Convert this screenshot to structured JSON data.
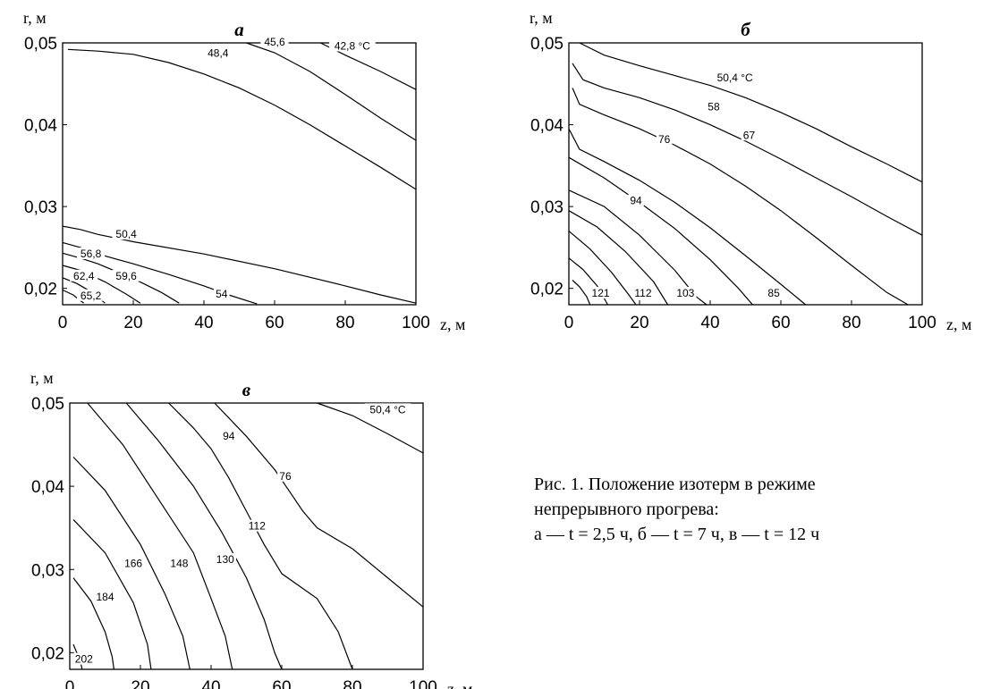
{
  "chart_data": [
    {
      "type": "line",
      "panel": "a",
      "title": "а",
      "xlabel": "z, м",
      "ylabel": "r, м",
      "xlim": [
        0,
        100
      ],
      "ylim": [
        0.018,
        0.05
      ],
      "xticks": [
        "0",
        "20",
        "40",
        "60",
        "80",
        "100"
      ],
      "yticks": [
        "0,02",
        "0,03",
        "0,04",
        "0,05"
      ],
      "series": [
        {
          "name": "42,8 °C",
          "points": [
            [
              73,
              0.05
            ],
            [
              80,
              0.0485
            ],
            [
              90,
              0.0465
            ],
            [
              100,
              0.0443
            ]
          ]
        },
        {
          "name": "45,6",
          "points": [
            [
              52,
              0.05
            ],
            [
              60,
              0.0488
            ],
            [
              70,
              0.0465
            ],
            [
              80,
              0.0437
            ],
            [
              90,
              0.0408
            ],
            [
              100,
              0.0381
            ]
          ]
        },
        {
          "name": "48,4",
          "points": [
            [
              1.5,
              0.0492
            ],
            [
              10,
              0.049
            ],
            [
              20,
              0.0486
            ],
            [
              30,
              0.0476
            ],
            [
              40,
              0.0462
            ],
            [
              50,
              0.0445
            ],
            [
              60,
              0.0424
            ],
            [
              70,
              0.04
            ],
            [
              80,
              0.0374
            ],
            [
              90,
              0.0348
            ],
            [
              100,
              0.0321
            ]
          ]
        },
        {
          "name": "50,4",
          "points": [
            [
              0,
              0.0276
            ],
            [
              5,
              0.0272
            ],
            [
              10,
              0.0266
            ],
            [
              20,
              0.0257
            ],
            [
              40,
              0.0242
            ],
            [
              60,
              0.0224
            ],
            [
              80,
              0.0203
            ],
            [
              90,
              0.0192
            ],
            [
              100,
              0.0182
            ]
          ]
        },
        {
          "name": "54",
          "points": [
            [
              0,
              0.0256
            ],
            [
              5,
              0.025
            ],
            [
              10,
              0.0242
            ],
            [
              20,
              0.023
            ],
            [
              30,
              0.0217
            ],
            [
              40,
              0.0203
            ],
            [
              47,
              0.0192
            ],
            [
              55,
              0.0181
            ]
          ]
        },
        {
          "name": "56,8",
          "points": [
            [
              0,
              0.0243
            ],
            [
              5,
              0.0237
            ],
            [
              10,
              0.023
            ],
            [
              20,
              0.0212
            ],
            [
              28,
              0.0195
            ],
            [
              33,
              0.0182
            ]
          ]
        },
        {
          "name": "59,6",
          "points": [
            [
              0,
              0.0228
            ],
            [
              5,
              0.0222
            ],
            [
              12,
              0.0208
            ],
            [
              18,
              0.0193
            ],
            [
              22,
              0.0182
            ]
          ]
        },
        {
          "name": "62,4",
          "points": [
            [
              0,
              0.0213
            ],
            [
              4,
              0.0206
            ],
            [
              8,
              0.0196
            ],
            [
              12,
              0.0182
            ]
          ]
        },
        {
          "name": "65,2",
          "points": [
            [
              0,
              0.0198
            ],
            [
              3,
              0.0192
            ],
            [
              5,
              0.0185
            ],
            [
              6,
              0.0182
            ]
          ]
        }
      ],
      "labels": [
        "42,8 °C",
        "45,6",
        "48,4",
        "50,4",
        "56,8",
        "62,4",
        "59,6",
        "65,2",
        "54"
      ]
    },
    {
      "type": "line",
      "panel": "б",
      "title": "б",
      "xlabel": "z, м",
      "ylabel": "r, м",
      "xlim": [
        0,
        100
      ],
      "ylim": [
        0.018,
        0.05
      ],
      "xticks": [
        "0",
        "20",
        "40",
        "60",
        "80",
        "100"
      ],
      "yticks": [
        "0,02",
        "0,03",
        "0,04",
        "0,05"
      ],
      "series": [
        {
          "name": "50,4 °C",
          "points": [
            [
              3,
              0.05
            ],
            [
              10,
              0.0485
            ],
            [
              20,
              0.0472
            ],
            [
              30,
              0.046
            ],
            [
              40,
              0.0448
            ],
            [
              50,
              0.0433
            ],
            [
              60,
              0.0415
            ],
            [
              70,
              0.0395
            ],
            [
              80,
              0.0373
            ],
            [
              90,
              0.0352
            ],
            [
              100,
              0.033
            ]
          ]
        },
        {
          "name": "58",
          "points": [
            [
              1,
              0.0475
            ],
            [
              4,
              0.0455
            ],
            [
              10,
              0.0445
            ],
            [
              20,
              0.0433
            ],
            [
              30,
              0.0418
            ],
            [
              40,
              0.04
            ],
            [
              50,
              0.038
            ],
            [
              60,
              0.0358
            ],
            [
              70,
              0.0335
            ],
            [
              80,
              0.0312
            ],
            [
              90,
              0.0288
            ],
            [
              100,
              0.0265
            ]
          ]
        },
        {
          "name": "67",
          "points": [
            [
              1,
              0.0445
            ],
            [
              3,
              0.0425
            ],
            [
              10,
              0.0412
            ],
            [
              20,
              0.0395
            ],
            [
              30,
              0.0375
            ],
            [
              40,
              0.0352
            ],
            [
              50,
              0.0325
            ],
            [
              60,
              0.0295
            ],
            [
              70,
              0.0262
            ],
            [
              80,
              0.0228
            ],
            [
              90,
              0.0195
            ],
            [
              96,
              0.018
            ]
          ]
        },
        {
          "name": "76",
          "points": [
            [
              0,
              0.0395
            ],
            [
              3,
              0.037
            ],
            [
              10,
              0.0355
            ],
            [
              20,
              0.0332
            ],
            [
              30,
              0.0305
            ],
            [
              40,
              0.0274
            ],
            [
              50,
              0.024
            ],
            [
              60,
              0.0205
            ],
            [
              67,
              0.018
            ]
          ]
        },
        {
          "name": "85",
          "points": [
            [
              0,
              0.036
            ],
            [
              10,
              0.0335
            ],
            [
              20,
              0.0305
            ],
            [
              30,
              0.0273
            ],
            [
              40,
              0.0235
            ],
            [
              48,
              0.02
            ],
            [
              52,
              0.018
            ]
          ]
        },
        {
          "name": "94",
          "points": [
            [
              0,
              0.032
            ],
            [
              10,
              0.03
            ],
            [
              20,
              0.0265
            ],
            [
              30,
              0.0222
            ],
            [
              36,
              0.019
            ],
            [
              39,
              0.018
            ]
          ]
        },
        {
          "name": "103",
          "points": [
            [
              0,
              0.0295
            ],
            [
              8,
              0.0275
            ],
            [
              16,
              0.0245
            ],
            [
              24,
              0.0208
            ],
            [
              28,
              0.018
            ]
          ]
        },
        {
          "name": "112",
          "points": [
            [
              0,
              0.027
            ],
            [
              6,
              0.0248
            ],
            [
              12,
              0.022
            ],
            [
              17,
              0.0192
            ],
            [
              19,
              0.018
            ]
          ]
        },
        {
          "name": "121",
          "points": [
            [
              0,
              0.0237
            ],
            [
              4,
              0.0223
            ],
            [
              8,
              0.0203
            ],
            [
              11,
              0.018
            ]
          ]
        },
        {
          "name": "",
          "points": [
            [
              1,
              0.021
            ],
            [
              3,
              0.0202
            ],
            [
              5,
              0.019
            ],
            [
              6,
              0.018
            ]
          ]
        }
      ],
      "labels": [
        "50,4 °C",
        "58",
        "67",
        "76",
        "94",
        "121",
        "112",
        "103",
        "85"
      ]
    },
    {
      "type": "line",
      "panel": "в",
      "title": "в",
      "xlabel": "z, м",
      "ylabel": "r, м",
      "xlim": [
        0,
        100
      ],
      "ylim": [
        0.018,
        0.05
      ],
      "xticks": [
        "0",
        "20",
        "40",
        "60",
        "80",
        "100"
      ],
      "yticks": [
        "0,02",
        "0,03",
        "0,04",
        "0,05"
      ],
      "series": [
        {
          "name": "50,4 °C",
          "points": [
            [
              70,
              0.05
            ],
            [
              80,
              0.0485
            ],
            [
              90,
              0.0463
            ],
            [
              100,
              0.044
            ]
          ]
        },
        {
          "name": "76",
          "points": [
            [
              41,
              0.05
            ],
            [
              50,
              0.046
            ],
            [
              58,
              0.042
            ],
            [
              62,
              0.0395
            ],
            [
              66,
              0.037
            ],
            [
              70,
              0.035
            ],
            [
              80,
              0.0325
            ],
            [
              90,
              0.029
            ],
            [
              100,
              0.0255
            ]
          ]
        },
        {
          "name": "94",
          "points": [
            [
              28,
              0.05
            ],
            [
              35,
              0.047
            ],
            [
              40,
              0.0445
            ],
            [
              45,
              0.041
            ],
            [
              50,
              0.037
            ],
            [
              55,
              0.033
            ],
            [
              60,
              0.0295
            ],
            [
              70,
              0.0265
            ],
            [
              76,
              0.0225
            ],
            [
              80,
              0.018
            ]
          ]
        },
        {
          "name": "112",
          "points": [
            [
              16,
              0.05
            ],
            [
              25,
              0.0455
            ],
            [
              35,
              0.04
            ],
            [
              43,
              0.0345
            ],
            [
              50,
              0.029
            ],
            [
              55,
              0.024
            ],
            [
              58,
              0.02
            ],
            [
              60,
              0.018
            ]
          ]
        },
        {
          "name": "130",
          "points": [
            [
              5,
              0.05
            ],
            [
              15,
              0.045
            ],
            [
              25,
              0.0385
            ],
            [
              35,
              0.032
            ],
            [
              40,
              0.0265
            ],
            [
              44,
              0.022
            ],
            [
              46,
              0.018
            ]
          ]
        },
        {
          "name": "148",
          "points": [
            [
              1,
              0.0435
            ],
            [
              10,
              0.0395
            ],
            [
              20,
              0.033
            ],
            [
              27,
              0.027
            ],
            [
              32,
              0.022
            ],
            [
              34,
              0.018
            ]
          ]
        },
        {
          "name": "166",
          "points": [
            [
              1,
              0.036
            ],
            [
              10,
              0.032
            ],
            [
              18,
              0.026
            ],
            [
              22,
              0.021
            ],
            [
              23,
              0.018
            ]
          ]
        },
        {
          "name": "184",
          "points": [
            [
              1,
              0.029
            ],
            [
              6,
              0.0262
            ],
            [
              10,
              0.0225
            ],
            [
              12,
              0.0195
            ],
            [
              12.5,
              0.018
            ]
          ]
        },
        {
          "name": "202",
          "points": [
            [
              1,
              0.021
            ],
            [
              2,
              0.02
            ],
            [
              3,
              0.019
            ],
            [
              3.5,
              0.018
            ]
          ]
        }
      ],
      "labels": [
        "50,4 °C",
        "94",
        "76",
        "112",
        "130",
        "148",
        "166",
        "184",
        "202"
      ]
    }
  ],
  "caption": {
    "line1": "Рис. 1. Положение изотерм в режиме",
    "line2": "непрерывного прогрева:",
    "line3": "а — t = 2,5 ч, б — t = 7 ч, в — t = 12 ч"
  }
}
